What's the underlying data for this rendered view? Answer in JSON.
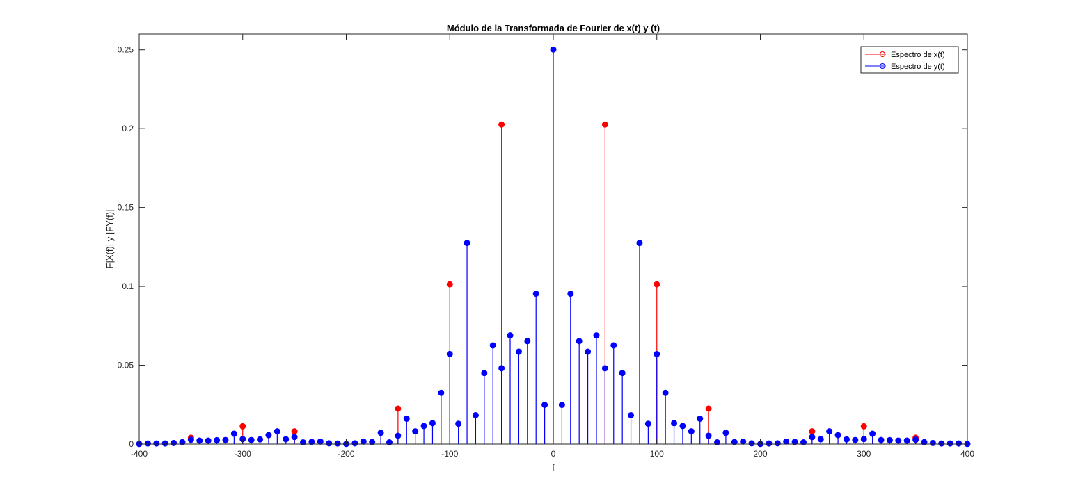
{
  "colors": {
    "x_series": "#ff0000",
    "y_series": "#0000ff",
    "axes": "#262626",
    "background": "#ffffff"
  },
  "chart_data": {
    "type": "stem",
    "title": "Módulo de la Transformada de Fourier de x(t) y (t)",
    "xlabel": "f",
    "ylabel": "F|X(f)| y |FY(f)|",
    "xlim": [
      -400,
      400
    ],
    "ylim": [
      0,
      0.26
    ],
    "xticks": [
      -400,
      -300,
      -200,
      -100,
      0,
      100,
      200,
      300,
      400
    ],
    "xtick_labels": [
      "-400",
      "-300",
      "-200",
      "-100",
      "0",
      "100",
      "200",
      "300",
      "400"
    ],
    "yticks": [
      0,
      0.05,
      0.1,
      0.15,
      0.2,
      0.25
    ],
    "ytick_labels": [
      "0",
      "0.05",
      "0.1",
      "0.15",
      "0.2",
      "0.25"
    ],
    "grid": false,
    "legend_position": "top-right",
    "series": [
      {
        "name": "Espectro de x(t)",
        "color": "#ff0000",
        "x": [
          -350,
          -300,
          -250,
          -150,
          -100,
          -50,
          50,
          100,
          150,
          250,
          300,
          350
        ],
        "y": [
          0.004,
          0.0113,
          0.0081,
          0.0225,
          0.1013,
          0.2026,
          0.2026,
          0.1013,
          0.0225,
          0.0081,
          0.0113,
          0.004
        ]
      },
      {
        "name": "Espectro de y(t)",
        "color": "#0000ff",
        "x": [
          -400,
          -391.67,
          -383.33,
          -375,
          -366.67,
          -358.33,
          -350,
          -341.67,
          -333.33,
          -325,
          -316.67,
          -308.33,
          -300,
          -291.67,
          -283.33,
          -275,
          -266.67,
          -258.33,
          -250,
          -241.67,
          -233.33,
          -225,
          -216.67,
          -208.33,
          -200,
          -191.67,
          -183.33,
          -175,
          -166.67,
          -158.33,
          -150,
          -141.67,
          -133.33,
          -125,
          -116.67,
          -108.33,
          -100,
          -91.67,
          -83.33,
          -75,
          -66.67,
          -58.33,
          -50,
          -41.67,
          -33.33,
          -25,
          -16.67,
          -8.33,
          0,
          8.33,
          16.67,
          25,
          33.33,
          41.67,
          50,
          58.33,
          66.67,
          75,
          83.33,
          91.67,
          100,
          108.33,
          116.67,
          125,
          133.33,
          141.67,
          150,
          158.33,
          166.67,
          175,
          183.33,
          191.67,
          200,
          208.33,
          216.67,
          225,
          233.33,
          241.67,
          250,
          258.33,
          266.67,
          275,
          283.33,
          291.67,
          300,
          308.33,
          316.67,
          325,
          333.33,
          341.67,
          350,
          358.33,
          366.67,
          375,
          383.33,
          391.67,
          400
        ],
        "y": [
          0.0001,
          0.0004,
          0.0004,
          0.0004,
          0.0007,
          0.0012,
          0.0028,
          0.0022,
          0.0022,
          0.0025,
          0.0026,
          0.0066,
          0.0032,
          0.0026,
          0.003,
          0.0057,
          0.0081,
          0.0031,
          0.0045,
          0.0011,
          0.0014,
          0.0016,
          0.0005,
          0.0004,
          0.0001,
          0.0005,
          0.0016,
          0.0013,
          0.0072,
          0.0011,
          0.0053,
          0.0161,
          0.0081,
          0.0115,
          0.0133,
          0.0325,
          0.0571,
          0.0129,
          0.1275,
          0.0183,
          0.0451,
          0.0626,
          0.0481,
          0.0689,
          0.0586,
          0.0653,
          0.0954,
          0.0249,
          0.2502,
          0.0249,
          0.0954,
          0.0653,
          0.0586,
          0.0689,
          0.0481,
          0.0626,
          0.0451,
          0.0183,
          0.1275,
          0.0129,
          0.0571,
          0.0325,
          0.0133,
          0.0115,
          0.0081,
          0.0161,
          0.0053,
          0.0011,
          0.0072,
          0.0013,
          0.0016,
          0.0005,
          0.0001,
          0.0004,
          0.0005,
          0.0016,
          0.0014,
          0.0011,
          0.0045,
          0.0031,
          0.0081,
          0.0057,
          0.003,
          0.0026,
          0.0032,
          0.0066,
          0.0026,
          0.0025,
          0.0022,
          0.0022,
          0.0028,
          0.0012,
          0.0007,
          0.0004,
          0.0004,
          0.0004,
          0.0001
        ]
      }
    ]
  }
}
